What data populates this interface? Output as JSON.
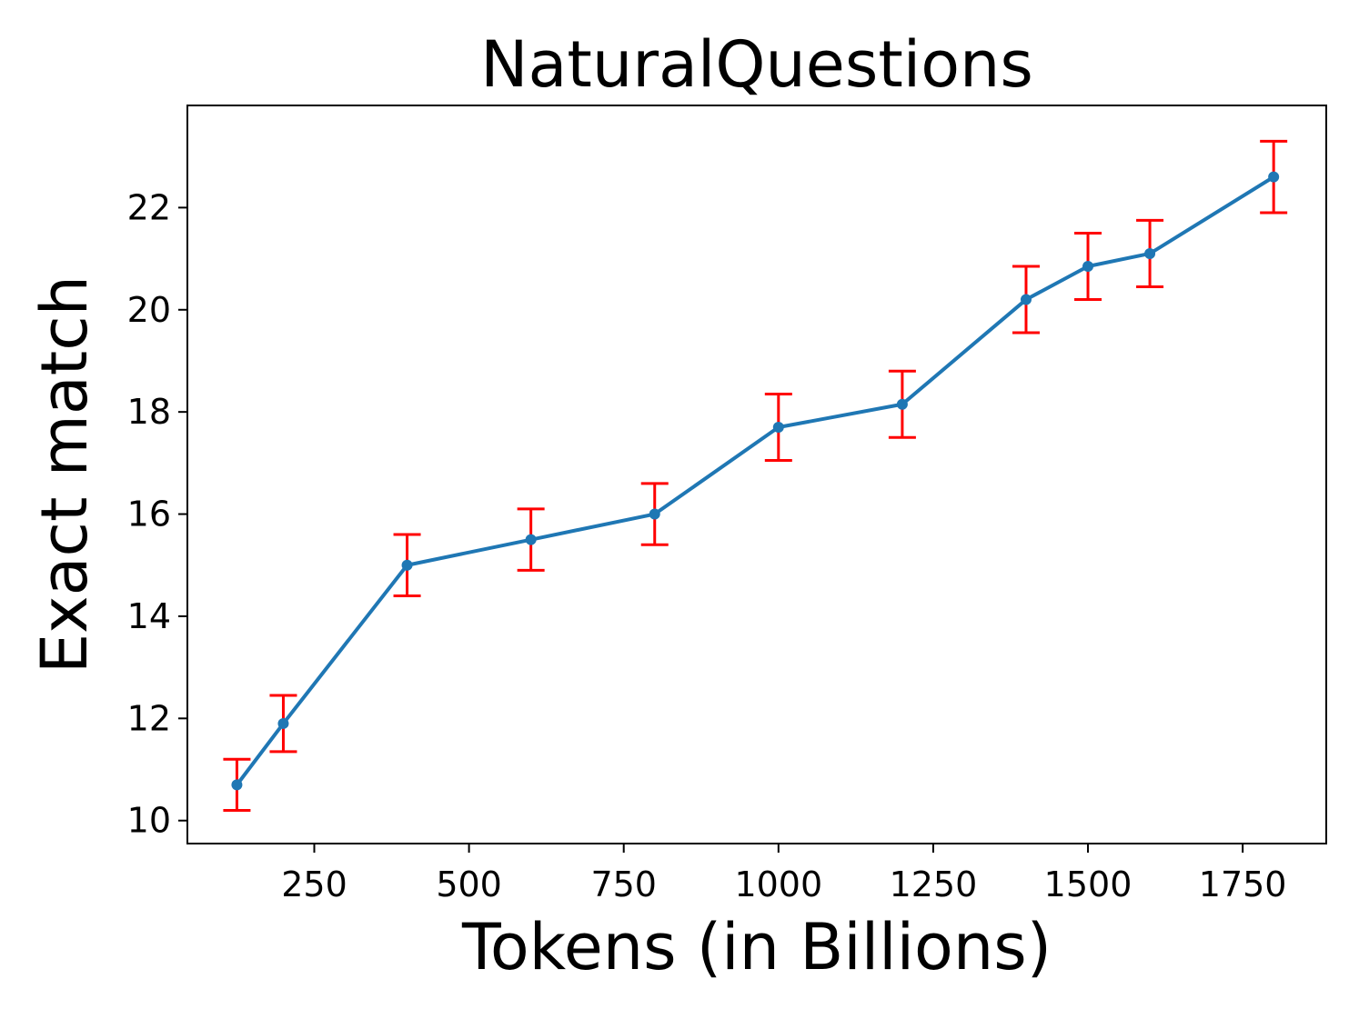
{
  "chart_data": {
    "type": "line",
    "title": "NaturalQuestions",
    "xlabel": "Tokens (in Billions)",
    "ylabel": "Exact match",
    "xlim": [
      45,
      1885
    ],
    "ylim": [
      9.55,
      24.0
    ],
    "xticks": [
      250,
      500,
      750,
      1000,
      1250,
      1500,
      1750
    ],
    "xtick_labels": [
      "250",
      "500",
      "750",
      "1000",
      "1250",
      "1500",
      "1750"
    ],
    "yticks": [
      10,
      12,
      14,
      16,
      18,
      20,
      22
    ],
    "ytick_labels": [
      "10",
      "12",
      "14",
      "16",
      "18",
      "20",
      "22"
    ],
    "grid": false,
    "line_color": "#1f77b4",
    "error_color": "#ff0000",
    "series": [
      {
        "x": [
          125,
          200,
          400,
          600,
          800,
          1000,
          1200,
          1400,
          1500,
          1600,
          1800
        ],
        "y": [
          10.7,
          11.9,
          15.0,
          15.5,
          16.0,
          17.7,
          18.15,
          20.2,
          20.85,
          21.1,
          22.6
        ],
        "err": [
          0.5,
          0.55,
          0.6,
          0.6,
          0.6,
          0.65,
          0.65,
          0.65,
          0.65,
          0.65,
          0.7
        ]
      }
    ]
  }
}
